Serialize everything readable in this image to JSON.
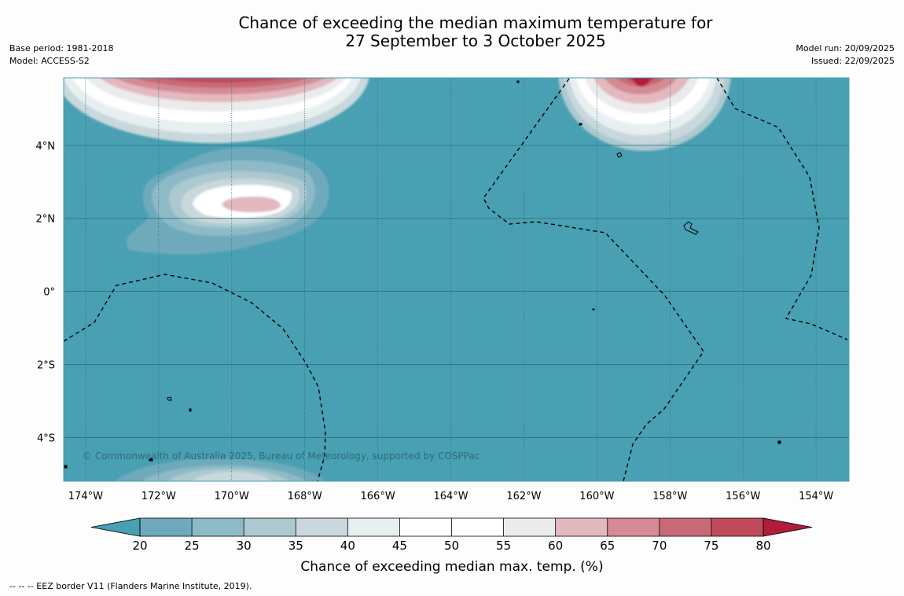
{
  "title_line1": "Chance of exceeding the median maximum temperature for",
  "title_line2": "27 September to 3 October 2025",
  "base_period": "Base period: 1981-2018",
  "model": "Model: ACCESS-S2",
  "model_run": "Model run: 20/09/2025",
  "issued": "Issued: 22/09/2025",
  "copyright": "© Commonwealth of Australia 2025, Bureau of Meteorology, supported by COSPPac",
  "footnote": "--  --  -- EEZ border V11 (Flanders Marine Institute, 2019).",
  "map": {
    "background_color": "#48a0b2",
    "lat_labels": [
      "4°N",
      "2°N",
      "0°",
      "2°S",
      "4°S"
    ],
    "lat_values": [
      4,
      2,
      0,
      -2,
      -4
    ],
    "lon_labels": [
      "174°W",
      "172°W",
      "170°W",
      "168°W",
      "166°W",
      "164°W",
      "162°W",
      "160°W",
      "158°W",
      "156°W",
      "154°W"
    ],
    "lon_values": [
      -174,
      -172,
      -170,
      -168,
      -166,
      -164,
      -162,
      -160,
      -158,
      -156,
      -154
    ],
    "extent": {
      "lon_min": -174.6,
      "lon_max": -153.1,
      "lat_min": -5.2,
      "lat_max": 5.85
    }
  },
  "colorbar": {
    "label": "Chance of exceeding median max. temp. (%)",
    "ticks": [
      "20",
      "25",
      "30",
      "35",
      "40",
      "45",
      "50",
      "55",
      "60",
      "65",
      "70",
      "75",
      "80"
    ],
    "colors": [
      "#48a0b2",
      "#6eaabb",
      "#8ebac7",
      "#acc9d0",
      "#c8d8dc",
      "#e8eff1",
      "#ffffff",
      "#ffffff",
      "#ebebeb",
      "#e3b8bf",
      "#d48b96",
      "#c86a76",
      "#c04a5a",
      "#b31b3b"
    ]
  }
}
